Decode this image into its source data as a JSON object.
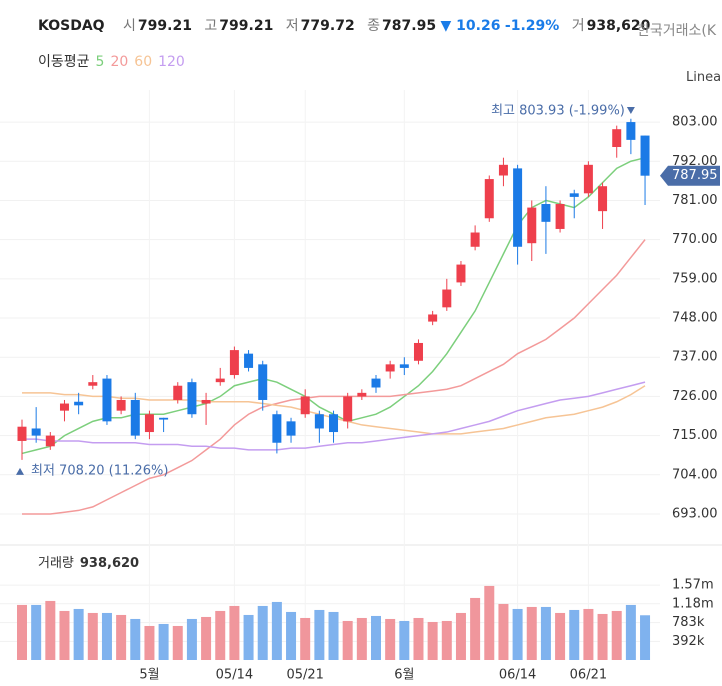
{
  "chart_data": {
    "type": "candlestick",
    "title": "KOSDAQ",
    "header": {
      "open_label": "시",
      "open": "799.21",
      "high_label": "고",
      "high": "799.21",
      "low_label": "저",
      "low": "779.72",
      "close_label": "종",
      "close": "787.95",
      "change": "▼ 10.26",
      "change_pct": "-1.29%",
      "volume_label": "거",
      "volume": "938,620",
      "source": "한국거래소(K",
      "scale_mode": "Linea"
    },
    "categories": [
      null,
      null,
      null,
      null,
      null,
      null,
      null,
      null,
      null,
      "5월",
      null,
      null,
      null,
      null,
      null,
      "05/14",
      null,
      null,
      null,
      null,
      "05/21",
      null,
      null,
      null,
      null,
      null,
      null,
      "6월",
      null,
      null,
      null,
      null,
      null,
      null,
      null,
      "06/14",
      null,
      null,
      null,
      null,
      "06/21",
      null,
      null,
      null,
      null
    ],
    "open": [
      713.5,
      717,
      712,
      722,
      724.5,
      729,
      731,
      722,
      725,
      716,
      720,
      725,
      730,
      724,
      730,
      732,
      738,
      735,
      721,
      719,
      721,
      721,
      721,
      719,
      726,
      731,
      733,
      735,
      736,
      747,
      751,
      758,
      768,
      776,
      788,
      790,
      769,
      780,
      773,
      783,
      783,
      778,
      796,
      803,
      799.21
    ],
    "high": [
      719.5,
      723,
      716,
      725,
      727,
      732,
      732,
      726,
      727,
      722,
      720,
      730,
      731,
      727,
      734,
      740,
      739,
      736,
      722,
      720,
      728,
      722,
      722,
      727,
      728,
      732,
      736,
      737,
      742,
      750,
      759,
      764,
      774,
      788,
      793,
      791,
      781,
      785,
      781,
      784,
      792,
      786,
      802,
      803.93,
      799.21
    ],
    "low": [
      708.2,
      713,
      711,
      719,
      721,
      728,
      718,
      721,
      714,
      714,
      716,
      724,
      720,
      718,
      729,
      731,
      733,
      722,
      710,
      713,
      720,
      713,
      713,
      717,
      725,
      727,
      731,
      732,
      735,
      746,
      750,
      757,
      767,
      775,
      785,
      763,
      764,
      766,
      772,
      776,
      782,
      773,
      793,
      794,
      779.72
    ],
    "close": [
      717.5,
      715,
      715,
      724,
      723.5,
      730,
      719,
      725,
      715,
      721,
      719.5,
      729,
      721,
      725,
      731,
      739,
      734,
      725,
      713,
      715,
      726,
      717,
      716,
      726,
      727,
      728.5,
      735,
      734,
      741,
      749,
      756,
      763,
      772,
      787,
      791,
      768,
      779,
      775,
      780,
      782,
      791,
      785,
      801,
      798,
      787.95
    ],
    "up_color": "#ee3f4c",
    "down_color": "#1b7ae6",
    "ylim": [
      685.7,
      812
    ],
    "yticks": [
      {
        "value": 693,
        "label": "693.00"
      },
      {
        "value": 704,
        "label": "704.00"
      },
      {
        "value": 715,
        "label": "715.00"
      },
      {
        "value": 726,
        "label": "726.00"
      },
      {
        "value": 737,
        "label": "737.00"
      },
      {
        "value": 748,
        "label": "748.00"
      },
      {
        "value": 759,
        "label": "759.00"
      },
      {
        "value": 770,
        "label": "770.00"
      },
      {
        "value": 781,
        "label": "781.00"
      },
      {
        "value": 792,
        "label": "792.00"
      },
      {
        "value": 803,
        "label": "803.00"
      }
    ],
    "grid": true,
    "last_price_color": "#4a6da8",
    "high_annotation": "최고 803.93 (-1.99%)",
    "low_annotation": "최저 708.20 (11.26%)",
    "annotation_color": "#4a6da8",
    "moving_averages": {
      "label": "이동평균",
      "series": [
        {
          "name": "5",
          "color": "#7ccf7c",
          "values": [
            710,
            711,
            712,
            715,
            717,
            719,
            720,
            720,
            721,
            721,
            721,
            722,
            723,
            724,
            726,
            729,
            730,
            731,
            730,
            728,
            726,
            723,
            721,
            719,
            720,
            721,
            723,
            726,
            729,
            733,
            738,
            744,
            750,
            758,
            766,
            774,
            779,
            781,
            780,
            779,
            782,
            786,
            790,
            792,
            793
          ]
        },
        {
          "name": "20",
          "color": "#f39a9a",
          "values": [
            693,
            693,
            693,
            693.5,
            694,
            695,
            697,
            699,
            701,
            703,
            704,
            706,
            708,
            711,
            714,
            718,
            721,
            723,
            724,
            725,
            725.5,
            726,
            726,
            726,
            726,
            726,
            726,
            726.5,
            727,
            727.5,
            728,
            729,
            731,
            733,
            735,
            738,
            740,
            742,
            745,
            748,
            752,
            756,
            760,
            765,
            770
          ]
        },
        {
          "name": "60",
          "color": "#f6c495",
          "values": [
            727,
            727,
            727,
            726.5,
            726.5,
            726,
            726,
            725.5,
            725.5,
            725,
            725,
            725,
            725,
            724.5,
            724.5,
            724.5,
            724.5,
            724,
            723.5,
            723,
            722,
            721,
            720,
            719,
            718,
            717.5,
            717,
            716.5,
            716,
            715.5,
            715.5,
            715.5,
            716,
            716.5,
            717,
            718,
            719,
            720,
            720.5,
            721,
            722,
            723,
            724.5,
            726.5,
            729
          ]
        },
        {
          "name": "120",
          "color": "#c49df0",
          "values": [
            714,
            714,
            713.5,
            713.5,
            713.5,
            713,
            713,
            713,
            713,
            712.5,
            712.5,
            712.5,
            712,
            712,
            711.5,
            711.5,
            711,
            711,
            711,
            711.5,
            711.5,
            712,
            712.5,
            713,
            713,
            713.5,
            714,
            714.5,
            715,
            715.5,
            716,
            717,
            718,
            719,
            720.5,
            722,
            723,
            724,
            725,
            725.5,
            726,
            727,
            728,
            729,
            730
          ]
        }
      ]
    },
    "volume": {
      "label": "거래량",
      "label_value": "938,620",
      "values": [
        1155000,
        1155000,
        1239000,
        1029000,
        1071000,
        987000,
        987000,
        945000,
        861000,
        714000,
        756000,
        714000,
        861000,
        903000,
        1029000,
        1134000,
        945000,
        1134000,
        1218000,
        1008000,
        882000,
        1050000,
        1008000,
        819000,
        882000,
        924000,
        861000,
        819000,
        882000,
        798000,
        819000,
        987000,
        1302000,
        1554000,
        1176000,
        1071000,
        1113000,
        1113000,
        987000,
        1050000,
        1071000,
        966000,
        1029000,
        1155000,
        938620
      ],
      "ylim": [
        0,
        2350000
      ],
      "yticks": [
        {
          "value": 392000,
          "label": "392k"
        },
        {
          "value": 783000,
          "label": "783k"
        },
        {
          "value": 1180000,
          "label": "1.18m"
        },
        {
          "value": 1570000,
          "label": "1.57m"
        }
      ],
      "up_color": "#f0969c",
      "down_color": "#7fb2ee"
    }
  }
}
